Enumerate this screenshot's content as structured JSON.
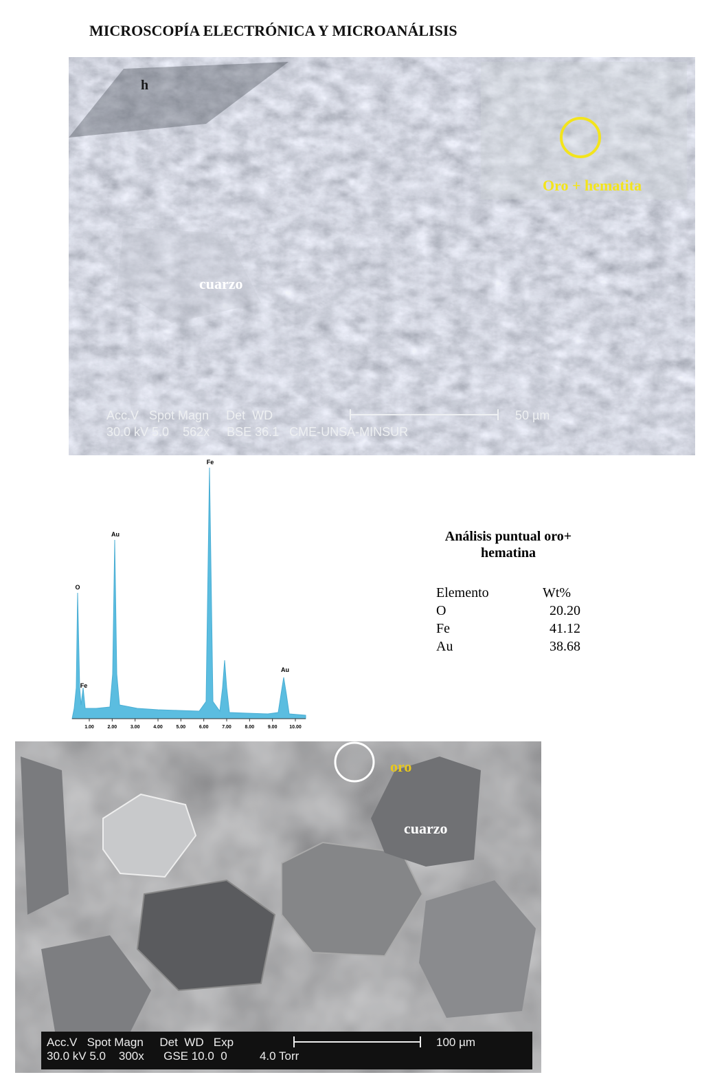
{
  "header": {
    "title": "MICROSCOPÍA ELECTRÓNICA Y MICROANÁLISIS"
  },
  "image1": {
    "labels": {
      "h": "h",
      "gold": "Oro + hematita",
      "quartz": "cuarzo"
    },
    "databar": {
      "line1": "Acc.V   Spot Magn     Det  WD",
      "line2": "30.0 kV 5.0    562x     BSE 36.1   CME-UNSA-MINSUR",
      "scale": "50 µm"
    }
  },
  "spectrum": {
    "peaks": [
      "O",
      "Fe",
      "Au",
      "Fe",
      "Au"
    ],
    "xticks": [
      "1.00",
      "2.00",
      "3.00",
      "4.00",
      "5.00",
      "6.00",
      "7.00",
      "8.00",
      "9.00",
      "10.00"
    ]
  },
  "table": {
    "title_line1": "Análisis puntual oro+",
    "title_line2": "hematina",
    "header": [
      "Elemento",
      "Wt%"
    ],
    "rows": [
      [
        "O",
        "20.20"
      ],
      [
        "Fe",
        "41.12"
      ],
      [
        "Au",
        "38.68"
      ]
    ]
  },
  "image2": {
    "labels": {
      "gold": "oro",
      "quartz": "cuarzo"
    },
    "databar": {
      "line1": "Acc.V   Spot Magn     Det  WD   Exp",
      "line2": "30.0 kV 5.0    300x      GSE 10.0  0          4.0 Torr",
      "scale": "100 µm"
    }
  }
}
